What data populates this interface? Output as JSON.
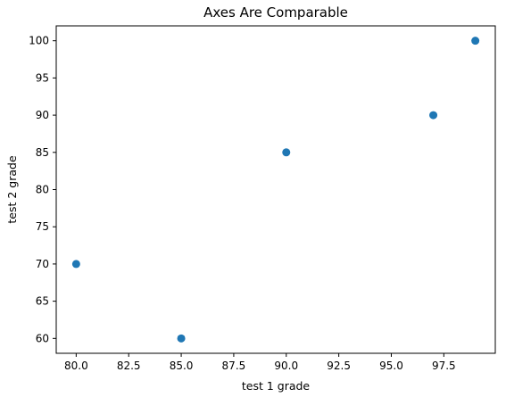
{
  "chart_data": {
    "type": "scatter",
    "title": "Axes Are Comparable",
    "xlabel": "test 1 grade",
    "ylabel": "test 2 grade",
    "xlim": [
      79.05,
      99.95
    ],
    "ylim": [
      58.0,
      102.0
    ],
    "xticks": [
      "80.0",
      "82.5",
      "85.0",
      "87.5",
      "90.0",
      "92.5",
      "95.0",
      "97.5"
    ],
    "yticks": [
      "60",
      "65",
      "70",
      "75",
      "80",
      "85",
      "90",
      "95",
      "100"
    ],
    "grid": false,
    "series": [
      {
        "points": [
          {
            "x": 99,
            "y": 100
          },
          {
            "x": 90,
            "y": 85
          },
          {
            "x": 85,
            "y": 60
          },
          {
            "x": 97,
            "y": 90
          },
          {
            "x": 80,
            "y": 70
          }
        ]
      }
    ],
    "colors": {
      "marker": "#1f77b4",
      "axis": "#000000"
    }
  }
}
